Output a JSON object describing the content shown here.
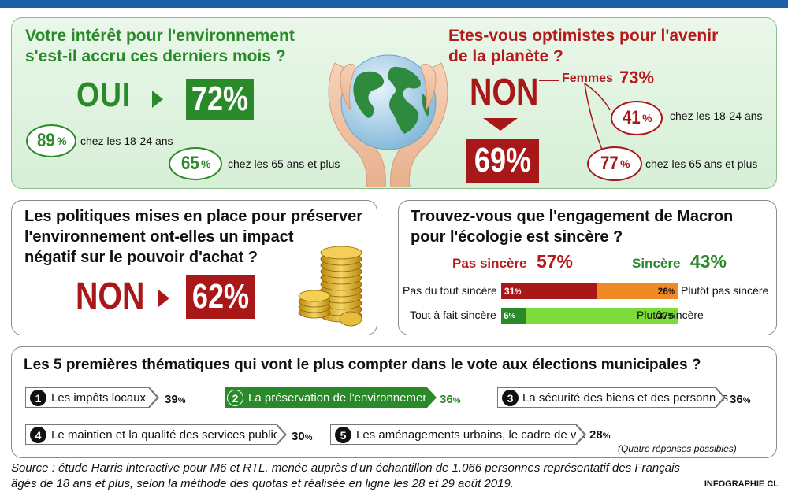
{
  "panel1": {
    "question_line1": "Votre intérêt pour l'environnement",
    "question_line2": "s'est-il accru ces derniers mois ?",
    "answer": "OUI",
    "answer_pct": "72%",
    "sub1_num": "89",
    "sub1_pct": "%",
    "sub1_label": "chez les 18-24 ans",
    "sub2_num": "65",
    "sub2_pct": "%",
    "sub2_label": "chez les 65 ans et plus"
  },
  "panel2": {
    "question_line1": "Etes-vous optimistes pour l'avenir",
    "question_line2": "de la planète ?",
    "answer": "NON",
    "answer_pct": "69%",
    "women_label": "Femmes",
    "women_pct": "73%",
    "sub1_num": "41",
    "sub1_pct": "%",
    "sub1_label": "chez les 18-24 ans",
    "sub2_num": "77",
    "sub2_pct": "%",
    "sub2_label": "chez les 65 ans et plus"
  },
  "panel3": {
    "question_line1": "Les politiques mises en place pour préserver",
    "question_line2": "l'environnement ont-elles un impact",
    "question_line3": "négatif sur le pouvoir d'achat ?",
    "answer": "NON",
    "answer_pct": "62%"
  },
  "panel4": {
    "question_line1": "Trouvez-vous que l'engagement de Macron",
    "question_line2": "pour l'écologie est sincère ?",
    "left_title": "Pas sincère",
    "left_pct": "57%",
    "right_title": "Sincère",
    "right_pct": "43%",
    "row1_left_label": "Pas du tout sincère",
    "row1_left_value": 31,
    "row1_right_value": 26,
    "row1_right_label": "Plutôt pas sincère",
    "row2_left_label": "Tout à fait sincère",
    "row2_left_value": 6,
    "row2_right_value": 37,
    "row2_right_label": "Plutôt sincère",
    "pct_sign": "%"
  },
  "panel5": {
    "title": "Les 5 premières thématiques qui vont le plus compter dans le vote aux élections municipales ?",
    "items": [
      {
        "num": "1",
        "label": "Les impôts locaux",
        "pct": "39"
      },
      {
        "num": "2",
        "label": "La préservation de l'environnement",
        "pct": "36"
      },
      {
        "num": "3",
        "label": "La sécurité des biens et des personnes",
        "pct": "36"
      },
      {
        "num": "4",
        "label": "Le maintien et la qualité des services publics",
        "pct": "30"
      },
      {
        "num": "5",
        "label": "Les aménagements urbains, le cadre de vie",
        "pct": "28"
      }
    ],
    "pct_sign": "%",
    "note": "(Quatre réponses possibles)"
  },
  "source_line1": "Source : étude Harris interactive pour M6 et RTL, menée auprès d'un échantillon de 1.066 personnes représentatif des Français",
  "source_line2": "âgés de 18 ans et plus, selon la méthode des quotas et réalisée en ligne les 28 et 29 août 2019.",
  "credit": "INFOGRAPHIE CL",
  "colors": {
    "green": "#2a8a2a",
    "red": "#a81818",
    "orange": "#f08a24",
    "light_green": "#7ddc3a",
    "blue": "#1b5fa8"
  },
  "icons": [
    "globe-in-hands-icon",
    "coin-stack-icon"
  ]
}
